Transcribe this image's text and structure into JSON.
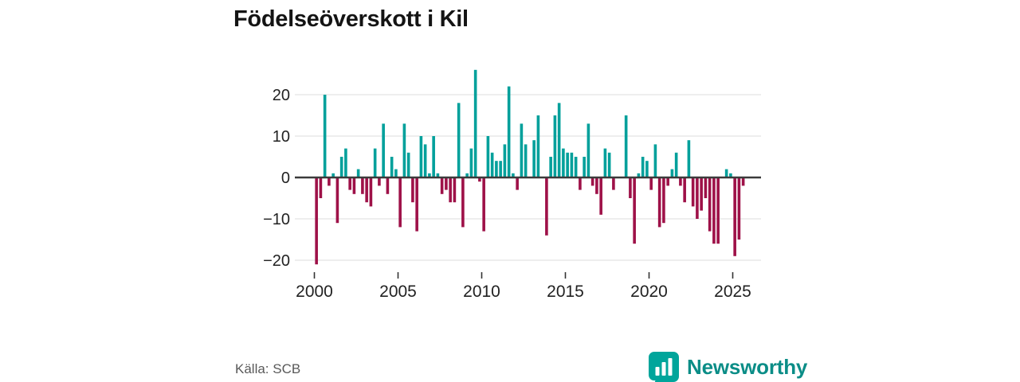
{
  "title": "Födelseöverskott i Kil",
  "source": "Källa: SCB",
  "brand": {
    "name": "Newsworthy",
    "color": "#00a59b"
  },
  "chart_data": {
    "type": "bar",
    "title": "Födelseöverskott i Kil",
    "frequency": "quarterly",
    "start_period": "2000-Q1",
    "end_period": "2025-Q3",
    "values": [
      -21,
      -5,
      20,
      -2,
      1,
      -11,
      5,
      7,
      -3,
      -4,
      2,
      -4,
      -6,
      -7,
      7,
      -2,
      13,
      -4,
      5,
      2,
      -12,
      13,
      6,
      -6,
      -13,
      10,
      8,
      1,
      10,
      1,
      -4,
      -3,
      -6,
      -6,
      18,
      -12,
      1,
      7,
      26,
      -1,
      -13,
      10,
      6,
      4,
      4,
      8,
      22,
      1,
      -3,
      13,
      8,
      0,
      9,
      15,
      0,
      -14,
      5,
      15,
      18,
      7,
      6,
      6,
      5,
      -3,
      5,
      13,
      -2,
      -4,
      -9,
      7,
      6,
      -3,
      0,
      0,
      15,
      -5,
      -16,
      1,
      5,
      4,
      -3,
      8,
      -12,
      -11,
      -2,
      2,
      6,
      -2,
      -6,
      9,
      -7,
      -10,
      -8,
      -5,
      -13,
      -16,
      -16,
      0,
      2,
      1,
      -19,
      -15,
      -2
    ],
    "x_ticks": [
      2000,
      2005,
      2010,
      2015,
      2020,
      2025
    ],
    "x_tick_labels": [
      "2000",
      "2005",
      "2010",
      "2015",
      "2020",
      "2025"
    ],
    "y_ticks": [
      20,
      10,
      0,
      -10,
      -20
    ],
    "y_tick_labels": [
      "20",
      "10",
      "0",
      "−10",
      "−20"
    ],
    "ylim": [
      -22,
      27
    ],
    "grid": true,
    "legend": "none",
    "positive_color": "#00a09b",
    "negative_color": "#9e1148",
    "zero_line_color": "#3b3b3b",
    "grid_color": "#e4e4e4",
    "axis_text_color": "#222222"
  }
}
